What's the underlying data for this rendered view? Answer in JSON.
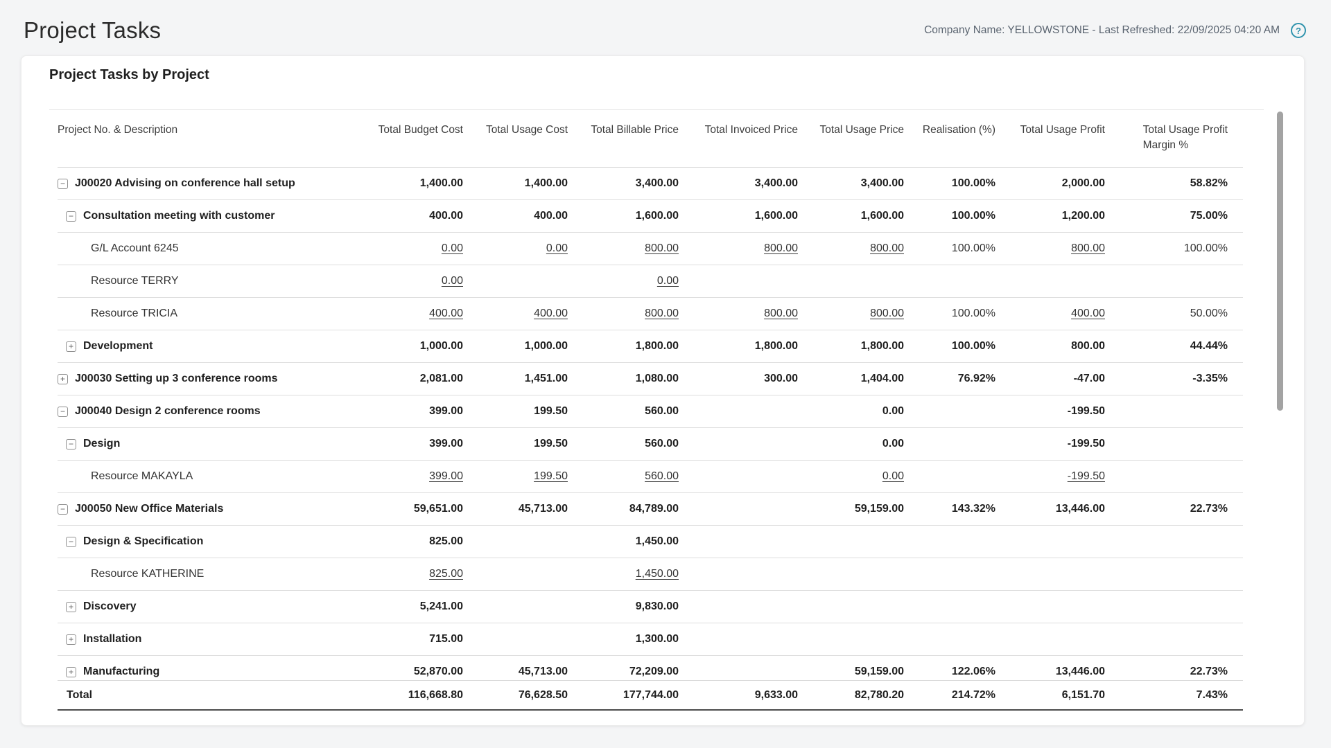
{
  "page": {
    "title": "Project Tasks",
    "meta": "Company Name: YELLOWSTONE - Last Refreshed: 22/09/2025 04:20 AM",
    "help_label": "?"
  },
  "report": {
    "title": "Project Tasks by Project",
    "columns": [
      "Project No. & Description",
      "Total Budget Cost",
      "Total Usage Cost",
      "Total Billable Price",
      "Total Invoiced Price",
      "Total Usage Price",
      "Realisation (%)",
      "Total Usage Profit",
      "Total Usage Profit\nMargin %"
    ],
    "rows": [
      {
        "level": 0,
        "style": "group",
        "toggle": "minus",
        "label": "J00020 Advising on conference hall setup",
        "values": [
          "1,400.00",
          "1,400.00",
          "3,400.00",
          "3,400.00",
          "3,400.00",
          "100.00%",
          "2,000.00",
          "58.82%"
        ]
      },
      {
        "level": 1,
        "style": "group",
        "toggle": "minus",
        "label": "Consultation meeting with customer",
        "values": [
          "400.00",
          "400.00",
          "1,600.00",
          "1,600.00",
          "1,600.00",
          "100.00%",
          "1,200.00",
          "75.00%"
        ]
      },
      {
        "level": 2,
        "style": "leaf",
        "toggle": null,
        "label": "G/L Account 6245",
        "values": [
          "0.00",
          "0.00",
          "800.00",
          "800.00",
          "800.00",
          "100.00%",
          "800.00",
          "100.00%"
        ]
      },
      {
        "level": 2,
        "style": "leaf",
        "toggle": null,
        "label": "Resource TERRY",
        "values": [
          "0.00",
          "",
          "0.00",
          "",
          "",
          "",
          "",
          ""
        ]
      },
      {
        "level": 2,
        "style": "leaf",
        "toggle": null,
        "label": "Resource TRICIA",
        "values": [
          "400.00",
          "400.00",
          "800.00",
          "800.00",
          "800.00",
          "100.00%",
          "400.00",
          "50.00%"
        ]
      },
      {
        "level": 1,
        "style": "group",
        "toggle": "plus",
        "label": "Development",
        "values": [
          "1,000.00",
          "1,000.00",
          "1,800.00",
          "1,800.00",
          "1,800.00",
          "100.00%",
          "800.00",
          "44.44%"
        ]
      },
      {
        "level": 0,
        "style": "group",
        "toggle": "plus",
        "label": "J00030 Setting up 3 conference rooms",
        "values": [
          "2,081.00",
          "1,451.00",
          "1,080.00",
          "300.00",
          "1,404.00",
          "76.92%",
          "-47.00",
          "-3.35%"
        ]
      },
      {
        "level": 0,
        "style": "group",
        "toggle": "minus",
        "label": "J00040 Design 2 conference rooms",
        "values": [
          "399.00",
          "199.50",
          "560.00",
          "",
          "0.00",
          "",
          "-199.50",
          ""
        ]
      },
      {
        "level": 1,
        "style": "group",
        "toggle": "minus",
        "label": "Design",
        "values": [
          "399.00",
          "199.50",
          "560.00",
          "",
          "0.00",
          "",
          "-199.50",
          ""
        ]
      },
      {
        "level": 2,
        "style": "leaf",
        "toggle": null,
        "label": "Resource MAKAYLA",
        "values": [
          "399.00",
          "199.50",
          "560.00",
          "",
          "0.00",
          "",
          "-199.50",
          ""
        ]
      },
      {
        "level": 0,
        "style": "group",
        "toggle": "minus",
        "label": "J00050 New Office Materials",
        "values": [
          "59,651.00",
          "45,713.00",
          "84,789.00",
          "",
          "59,159.00",
          "143.32%",
          "13,446.00",
          "22.73%"
        ]
      },
      {
        "level": 1,
        "style": "group",
        "toggle": "minus",
        "label": "Design & Specification",
        "values": [
          "825.00",
          "",
          "1,450.00",
          "",
          "",
          "",
          "",
          ""
        ]
      },
      {
        "level": 2,
        "style": "leaf",
        "toggle": null,
        "label": "Resource KATHERINE",
        "values": [
          "825.00",
          "",
          "1,450.00",
          "",
          "",
          "",
          "",
          ""
        ]
      },
      {
        "level": 1,
        "style": "group",
        "toggle": "plus",
        "label": "Discovery",
        "values": [
          "5,241.00",
          "",
          "9,830.00",
          "",
          "",
          "",
          "",
          ""
        ]
      },
      {
        "level": 1,
        "style": "group",
        "toggle": "plus",
        "label": "Installation",
        "values": [
          "715.00",
          "",
          "1,300.00",
          "",
          "",
          "",
          "",
          ""
        ]
      },
      {
        "level": 1,
        "style": "group",
        "toggle": "plus",
        "label": "Manufacturing",
        "values": [
          "52,870.00",
          "45,713.00",
          "72,209.00",
          "",
          "59,159.00",
          "122.06%",
          "13,446.00",
          "22.73%"
        ]
      }
    ],
    "total": {
      "label": "Total",
      "values": [
        "116,668.80",
        "76,628.50",
        "177,744.00",
        "9,633.00",
        "82,780.20",
        "214.72%",
        "6,151.70",
        "7.43%"
      ]
    }
  },
  "colors": {
    "help_accent": "#2f93ad",
    "meta_text": "#5a6470",
    "total_border": "#4b4b4b",
    "row_divider": "#dddddd"
  }
}
